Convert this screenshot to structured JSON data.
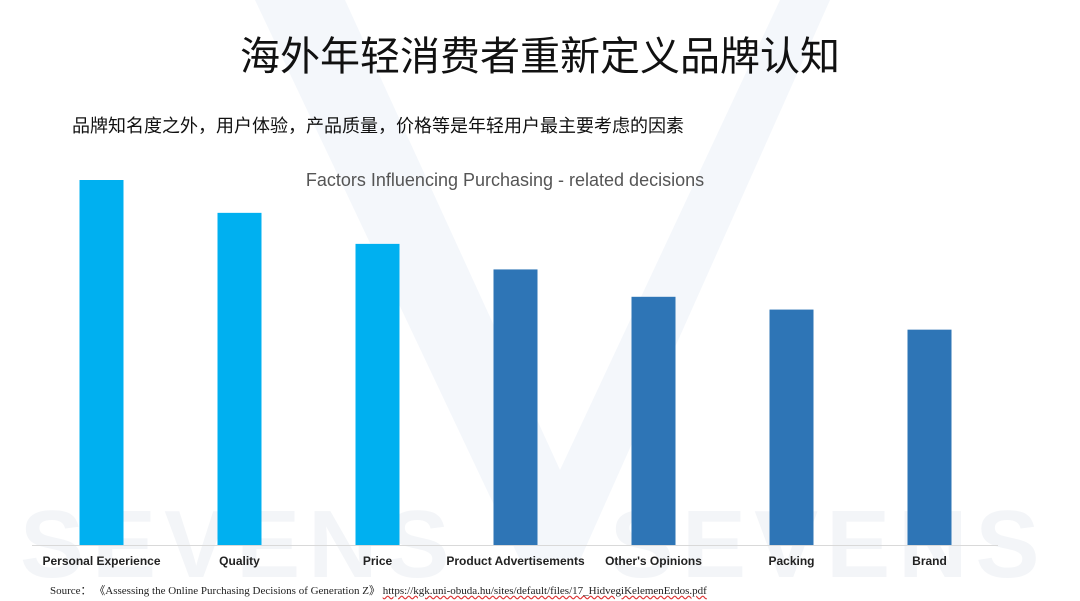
{
  "slide": {
    "title": "海外年轻消费者重新定义品牌认知",
    "subtitle": "品牌知名度之外，用户体验，产品质量，价格等是年轻用户最主要考虑的因素",
    "watermark": "SEVENS"
  },
  "chart_data": {
    "type": "bar",
    "title": "Factors Influencing Purchasing - related decisions",
    "categories": [
      "Personal Experience",
      "Quality",
      "Price",
      "Product Advertisements",
      "Other's Opinions",
      "Packing",
      "Brand"
    ],
    "values": [
      100,
      91,
      82.5,
      75.5,
      68,
      64.5,
      59
    ],
    "ylim": [
      0,
      100
    ],
    "xlabel": "",
    "ylabel": "",
    "grid": false,
    "colors": [
      "#00b0f0",
      "#00b0f0",
      "#00b0f0",
      "#2e75b6",
      "#2e75b6",
      "#2e75b6",
      "#2e75b6"
    ]
  },
  "source": {
    "label": "Source：",
    "reference": "《Assessing the Online Purchasing Decisions of Generation Z》",
    "url": "https://kgk.uni-obuda.hu/sites/default/files/17_HidvegiKelemenErdos.pdf"
  }
}
